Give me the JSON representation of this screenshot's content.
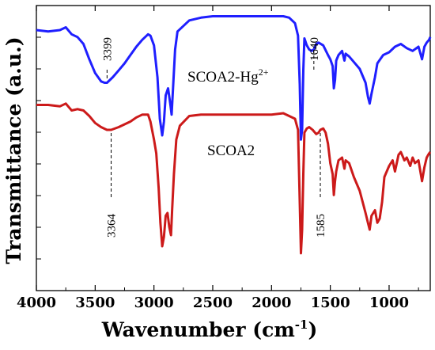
{
  "chart_data": {
    "type": "line",
    "xlabel": "Wavenumber (cm",
    "xlabel_sup": "-1",
    "xlabel_end": ")",
    "ylabel": "Transmittance (a.u.)",
    "xlim": [
      4000,
      650
    ],
    "x_reversed": true,
    "y_ticks_labeled": false,
    "xticks": [
      4000,
      3500,
      3000,
      2500,
      2000,
      1500,
      1000
    ],
    "xtick_labels": [
      "4000",
      "3500",
      "3000",
      "2500",
      "2000",
      "1500",
      "1000"
    ],
    "grid": false,
    "series": [
      {
        "name": "SCOA2-Hg",
        "name_sup": "2+",
        "color": "#1f1fff",
        "points": [
          [
            4000,
            84
          ],
          [
            3900,
            83
          ],
          [
            3800,
            84
          ],
          [
            3750,
            86
          ],
          [
            3700,
            81
          ],
          [
            3650,
            79
          ],
          [
            3600,
            74
          ],
          [
            3550,
            63
          ],
          [
            3500,
            53
          ],
          [
            3450,
            47
          ],
          [
            3420,
            46
          ],
          [
            3399,
            46
          ],
          [
            3350,
            50
          ],
          [
            3300,
            55
          ],
          [
            3250,
            60
          ],
          [
            3200,
            66
          ],
          [
            3150,
            72
          ],
          [
            3100,
            77
          ],
          [
            3050,
            81
          ],
          [
            3030,
            80
          ],
          [
            3000,
            73
          ],
          [
            2970,
            50
          ],
          [
            2950,
            20
          ],
          [
            2930,
            8
          ],
          [
            2915,
            18
          ],
          [
            2900,
            37
          ],
          [
            2880,
            42
          ],
          [
            2870,
            36
          ],
          [
            2860,
            30
          ],
          [
            2850,
            23
          ],
          [
            2840,
            38
          ],
          [
            2820,
            70
          ],
          [
            2800,
            83
          ],
          [
            2700,
            91
          ],
          [
            2600,
            93
          ],
          [
            2500,
            94
          ],
          [
            2400,
            94
          ],
          [
            2300,
            94
          ],
          [
            2200,
            94
          ],
          [
            2100,
            94
          ],
          [
            2000,
            94
          ],
          [
            1900,
            94
          ],
          [
            1850,
            93
          ],
          [
            1800,
            89
          ],
          [
            1775,
            80
          ],
          [
            1760,
            45
          ],
          [
            1750,
            5
          ],
          [
            1740,
            12
          ],
          [
            1730,
            55
          ],
          [
            1720,
            78
          ],
          [
            1700,
            73
          ],
          [
            1680,
            70
          ],
          [
            1660,
            69
          ],
          [
            1640,
            70
          ],
          [
            1620,
            74
          ],
          [
            1600,
            75
          ],
          [
            1560,
            73
          ],
          [
            1520,
            66
          ],
          [
            1500,
            63
          ],
          [
            1480,
            58
          ],
          [
            1470,
            42
          ],
          [
            1460,
            48
          ],
          [
            1450,
            62
          ],
          [
            1430,
            66
          ],
          [
            1400,
            69
          ],
          [
            1380,
            62
          ],
          [
            1370,
            67
          ],
          [
            1340,
            65
          ],
          [
            1300,
            61
          ],
          [
            1250,
            56
          ],
          [
            1200,
            46
          ],
          [
            1180,
            36
          ],
          [
            1165,
            31
          ],
          [
            1150,
            38
          ],
          [
            1120,
            50
          ],
          [
            1100,
            60
          ],
          [
            1050,
            66
          ],
          [
            1000,
            68
          ],
          [
            950,
            72
          ],
          [
            900,
            74
          ],
          [
            850,
            71
          ],
          [
            800,
            69
          ],
          [
            750,
            72
          ],
          [
            720,
            63
          ],
          [
            700,
            72
          ],
          [
            680,
            75
          ],
          [
            660,
            77
          ],
          [
            650,
            79
          ]
        ]
      },
      {
        "name": "SCOA2",
        "color": "#cc1a1a",
        "points": [
          [
            4000,
            30
          ],
          [
            3900,
            30
          ],
          [
            3800,
            29
          ],
          [
            3750,
            31
          ],
          [
            3700,
            26
          ],
          [
            3650,
            27
          ],
          [
            3600,
            26
          ],
          [
            3550,
            22
          ],
          [
            3500,
            17
          ],
          [
            3450,
            14
          ],
          [
            3400,
            12
          ],
          [
            3364,
            12
          ],
          [
            3300,
            14
          ],
          [
            3250,
            16
          ],
          [
            3200,
            18
          ],
          [
            3150,
            21
          ],
          [
            3100,
            23
          ],
          [
            3050,
            23
          ],
          [
            3030,
            18
          ],
          [
            3000,
            5
          ],
          [
            2980,
            -5
          ],
          [
            2960,
            -30
          ],
          [
            2945,
            -55
          ],
          [
            2930,
            -72
          ],
          [
            2915,
            -65
          ],
          [
            2900,
            -50
          ],
          [
            2885,
            -48
          ],
          [
            2870,
            -58
          ],
          [
            2855,
            -64
          ],
          [
            2845,
            -45
          ],
          [
            2830,
            -20
          ],
          [
            2810,
            5
          ],
          [
            2780,
            15
          ],
          [
            2700,
            22
          ],
          [
            2600,
            23
          ],
          [
            2500,
            23
          ],
          [
            2400,
            23
          ],
          [
            2300,
            23
          ],
          [
            2200,
            23
          ],
          [
            2100,
            23
          ],
          [
            2000,
            23
          ],
          [
            1900,
            24
          ],
          [
            1850,
            22
          ],
          [
            1800,
            20
          ],
          [
            1775,
            12
          ],
          [
            1760,
            -40
          ],
          [
            1750,
            -77
          ],
          [
            1740,
            -60
          ],
          [
            1730,
            -20
          ],
          [
            1720,
            10
          ],
          [
            1700,
            13
          ],
          [
            1680,
            14
          ],
          [
            1650,
            12
          ],
          [
            1620,
            9
          ],
          [
            1600,
            10
          ],
          [
            1585,
            12
          ],
          [
            1560,
            13
          ],
          [
            1540,
            10
          ],
          [
            1520,
            2
          ],
          [
            1500,
            -12
          ],
          [
            1480,
            -20
          ],
          [
            1470,
            -35
          ],
          [
            1460,
            -25
          ],
          [
            1450,
            -18
          ],
          [
            1430,
            -10
          ],
          [
            1400,
            -8
          ],
          [
            1380,
            -16
          ],
          [
            1370,
            -10
          ],
          [
            1340,
            -12
          ],
          [
            1300,
            -22
          ],
          [
            1250,
            -32
          ],
          [
            1200,
            -48
          ],
          [
            1180,
            -55
          ],
          [
            1165,
            -60
          ],
          [
            1150,
            -50
          ],
          [
            1120,
            -46
          ],
          [
            1100,
            -55
          ],
          [
            1080,
            -52
          ],
          [
            1060,
            -40
          ],
          [
            1040,
            -22
          ],
          [
            1000,
            -14
          ],
          [
            970,
            -10
          ],
          [
            950,
            -18
          ],
          [
            920,
            -6
          ],
          [
            900,
            -4
          ],
          [
            870,
            -10
          ],
          [
            850,
            -8
          ],
          [
            820,
            -14
          ],
          [
            800,
            -8
          ],
          [
            780,
            -12
          ],
          [
            750,
            -10
          ],
          [
            720,
            -25
          ],
          [
            700,
            -15
          ],
          [
            680,
            -8
          ],
          [
            660,
            -5
          ],
          [
            650,
            -4
          ]
        ]
      }
    ],
    "annotations": [
      {
        "label": "3399",
        "x": 3399,
        "series": "SCOA2-Hg",
        "side": "above"
      },
      {
        "label": "1640",
        "x": 1640,
        "series": "SCOA2-Hg",
        "side": "above"
      },
      {
        "label": "3364",
        "x": 3364,
        "series": "SCOA2",
        "side": "below"
      },
      {
        "label": "1585",
        "x": 1585,
        "series": "SCOA2",
        "side": "below"
      }
    ]
  }
}
